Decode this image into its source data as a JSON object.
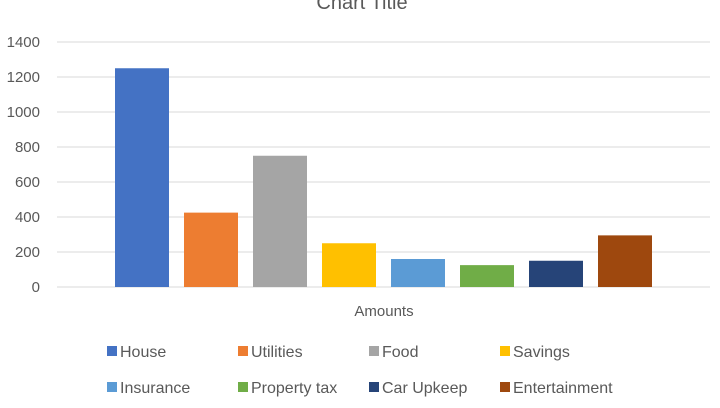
{
  "chart_data": {
    "type": "bar",
    "title": "Chart Title",
    "xlabel": "Amounts",
    "ylabel": "",
    "ylim": [
      0,
      1400
    ],
    "yticks": [
      0,
      200,
      400,
      600,
      800,
      1000,
      1200,
      1400
    ],
    "categories": [
      "Amounts"
    ],
    "grid": "horizontal",
    "legend": "bottom",
    "series": [
      {
        "name": "House",
        "values": [
          1250
        ],
        "color": "#4472c4"
      },
      {
        "name": "Utilities",
        "values": [
          425
        ],
        "color": "#ed7d31"
      },
      {
        "name": "Food",
        "values": [
          750
        ],
        "color": "#a5a5a5"
      },
      {
        "name": "Savings",
        "values": [
          250
        ],
        "color": "#ffc000"
      },
      {
        "name": "Insurance",
        "values": [
          160
        ],
        "color": "#5b9bd5"
      },
      {
        "name": "Property tax",
        "values": [
          125
        ],
        "color": "#70ad47"
      },
      {
        "name": "Car Upkeep",
        "values": [
          150
        ],
        "color": "#264478"
      },
      {
        "name": "Entertainment",
        "values": [
          295
        ],
        "color": "#9e480e"
      }
    ]
  }
}
